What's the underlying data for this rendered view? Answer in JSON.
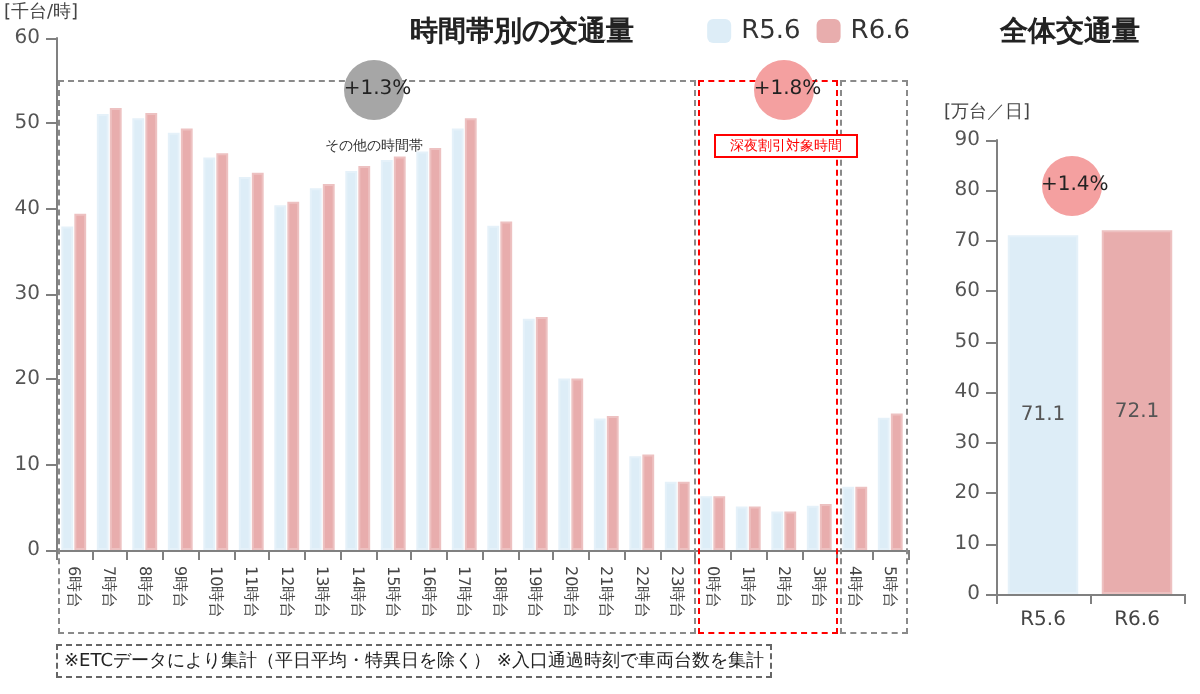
{
  "chart_data": [
    {
      "type": "bar",
      "title": "時間帯別の交通量",
      "ylabel": "[千台/時]",
      "categories": [
        "6時台",
        "7時台",
        "8時台",
        "9時台",
        "10時台",
        "11時台",
        "12時台",
        "13時台",
        "14時台",
        "15時台",
        "16時台",
        "17時台",
        "18時台",
        "19時台",
        "20時台",
        "21時台",
        "22時台",
        "23時台",
        "0時台",
        "1時台",
        "2時台",
        "3時台",
        "4時台",
        "5時台"
      ],
      "series": [
        {
          "name": "R5.6",
          "color": "#ddedf7",
          "values": [
            37.9,
            51.1,
            50.6,
            48.9,
            46.0,
            43.7,
            40.4,
            42.4,
            44.4,
            45.7,
            46.7,
            49.4,
            38.0,
            27.1,
            20.1,
            15.4,
            11.0,
            8.0,
            6.3,
            5.1,
            4.5,
            5.2,
            7.4,
            15.5
          ]
        },
        {
          "name": "R6.6",
          "color": "#e8adad",
          "values": [
            39.4,
            51.8,
            51.2,
            49.4,
            46.5,
            44.2,
            40.8,
            42.9,
            45.0,
            46.1,
            47.1,
            50.6,
            38.5,
            27.3,
            20.1,
            15.7,
            11.2,
            8.0,
            6.3,
            5.1,
            4.5,
            5.4,
            7.4,
            16.0
          ]
        }
      ],
      "ylim": [
        0,
        60
      ],
      "yticks": [
        0,
        10,
        20,
        30,
        40,
        50,
        60
      ],
      "grid": false,
      "legend": "top right",
      "annotations": [
        "+1.3%",
        "その他の時間帯",
        "+1.8%",
        "深夜割引対象時間",
        "※ETCデータにより集計（平日平均・特異日を除く） ※入口通過時刻で車両台数を集計"
      ]
    },
    {
      "type": "bar",
      "title": "全体交通量",
      "ylabel": "[万台／日]",
      "categories": [
        "R5.6",
        "R6.6"
      ],
      "values": [
        71.1,
        72.1
      ],
      "colors": [
        "#ddedf7",
        "#e8adad"
      ],
      "data_labels": true,
      "ylim": [
        0,
        90
      ],
      "yticks": [
        0,
        10,
        20,
        30,
        40,
        50,
        60,
        70,
        80,
        90
      ],
      "grid": false,
      "legend": false,
      "annotations": [
        "+1.4%"
      ]
    }
  ]
}
